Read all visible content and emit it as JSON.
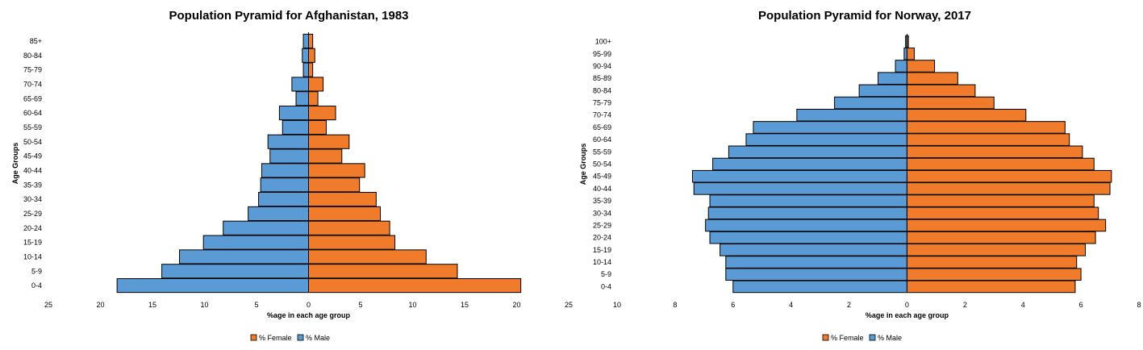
{
  "colors": {
    "female": "#f07b2a",
    "male": "#5b9bd5",
    "stroke": "#000000"
  },
  "chart_data": [
    {
      "type": "bar",
      "orientation": "horizontal-diverging",
      "title": "Population Pyramid for Afghanistan, 1983",
      "xlabel": "%age in each age group",
      "ylabel": "Age Groups",
      "xlim": [
        -25,
        25
      ],
      "xticks": [
        -25,
        -20,
        -15,
        -10,
        -5,
        0,
        5,
        10,
        15,
        20,
        25
      ],
      "xtick_labels": [
        "25",
        "20",
        "15",
        "10",
        "5",
        "0",
        "5",
        "10",
        "15",
        "20",
        "25"
      ],
      "legend": [
        "% Female",
        "% Male"
      ],
      "legend_position": "bottom",
      "categories": [
        "0-4",
        "5-9",
        "10-14",
        "15-19",
        "20-24",
        "25-29",
        "30-34",
        "35-39",
        "40-44",
        "45-49",
        "50-54",
        "55-59",
        "60-64",
        "65-69",
        "70-74",
        "75-79",
        "80-84",
        "85+"
      ],
      "series": [
        {
          "name": "% Female",
          "values": [
            20.4,
            14.3,
            11.3,
            8.3,
            7.8,
            6.9,
            6.5,
            4.9,
            5.4,
            3.2,
            3.9,
            1.7,
            2.6,
            0.9,
            1.4,
            0.4,
            0.6,
            0.4
          ]
        },
        {
          "name": "% Male",
          "values": [
            18.4,
            14.1,
            12.4,
            10.1,
            8.2,
            5.8,
            4.8,
            4.6,
            4.5,
            3.7,
            3.9,
            2.5,
            2.8,
            1.2,
            1.6,
            0.5,
            0.6,
            0.5
          ]
        }
      ]
    },
    {
      "type": "bar",
      "orientation": "horizontal-diverging",
      "title": "Population Pyramid for Norway, 2017",
      "xlabel": "%age in each age group",
      "ylabel": "Age Groups",
      "xlim": [
        -10,
        8
      ],
      "xticks": [
        -10,
        -8,
        -6,
        -4,
        -2,
        0,
        2,
        4,
        6,
        8
      ],
      "xtick_labels": [
        "10",
        "8",
        "6",
        "4",
        "2",
        "0",
        "2",
        "4",
        "6",
        "8"
      ],
      "legend": [
        "% Female",
        "% Male"
      ],
      "legend_position": "bottom",
      "categories": [
        "0-4",
        "5-9",
        "10-14",
        "15-19",
        "20-24",
        "25-29",
        "30-34",
        "35-39",
        "40-44",
        "45-49",
        "50-54",
        "55-59",
        "60-64",
        "65-69",
        "70-74",
        "75-79",
        "80-84",
        "85-89",
        "90-94",
        "95-99",
        "100+"
      ],
      "series": [
        {
          "name": "% Female",
          "values": [
            5.8,
            6.0,
            5.85,
            6.15,
            6.5,
            6.85,
            6.6,
            6.45,
            7.0,
            7.05,
            6.45,
            6.05,
            5.6,
            5.45,
            4.1,
            3.0,
            2.35,
            1.75,
            0.95,
            0.25,
            0.05
          ]
        },
        {
          "name": "% Male",
          "values": [
            6.0,
            6.25,
            6.25,
            6.45,
            6.8,
            6.95,
            6.85,
            6.8,
            7.35,
            7.4,
            6.7,
            6.15,
            5.55,
            5.3,
            3.8,
            2.5,
            1.65,
            1.0,
            0.4,
            0.1,
            0.05
          ]
        }
      ]
    }
  ]
}
